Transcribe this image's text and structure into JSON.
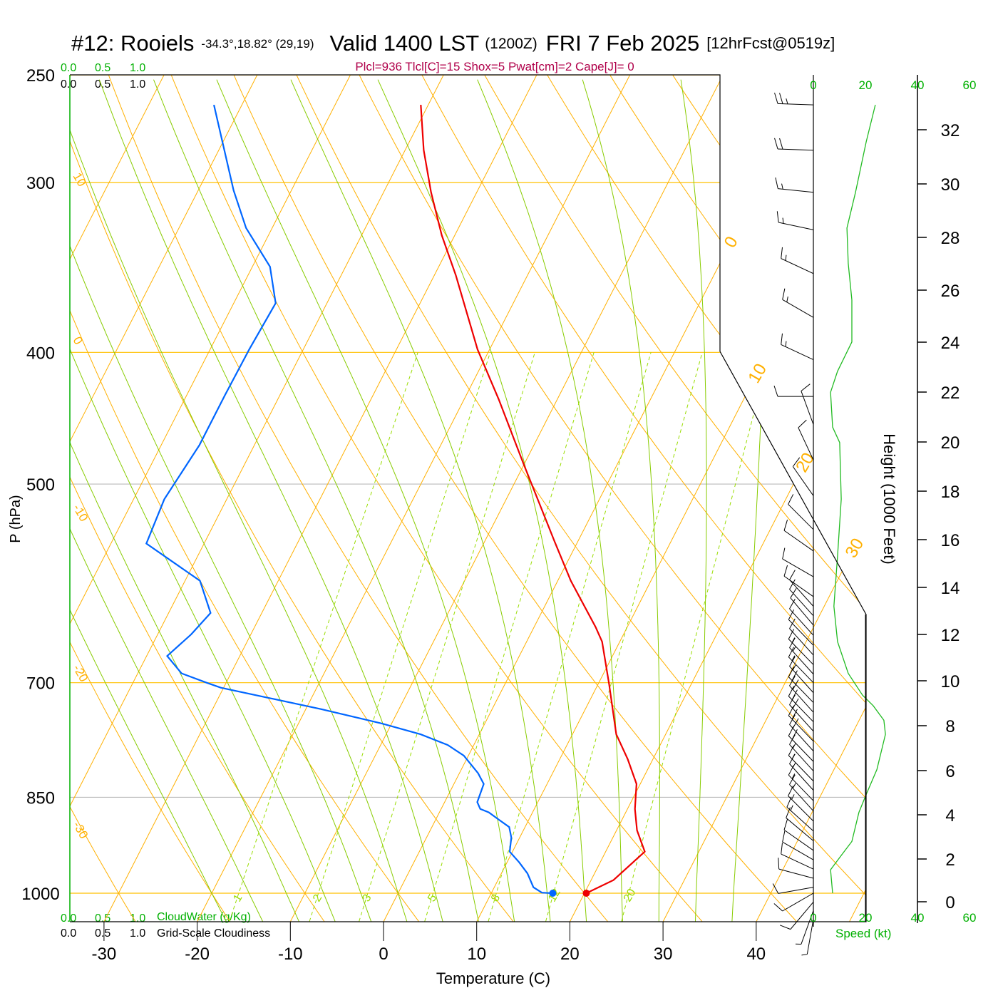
{
  "title": {
    "station": "#12: Rooiels",
    "coords": "-34.3°,18.82° (29,19)",
    "valid": "Valid 1400 LST",
    "zulu": "(1200Z)",
    "date": "FRI 7 Feb 2025",
    "forecast": "[12hrFcst@0519z]"
  },
  "parcel_info": "Plcl=936 Tlcl[C]=15 Shox=5 Pwat[cm]=2 Cape[J]= 0",
  "colors": {
    "temperature": "#ee0000",
    "dewpoint": "#0066ff",
    "isotherm": "#ffb000",
    "moist_adiabat": "#88cc00",
    "mixing_ratio": "#99dd00",
    "green_text": "#00b000",
    "parcel_text": "#b0004a"
  },
  "cloud_scale": {
    "ticks": [
      "0.0",
      "0.5",
      "1.0"
    ],
    "cloudwater_label": "CloudWater (g/Kg)",
    "cloudiness_label": "Grid-Scale Cloudiness"
  },
  "chart_data": {
    "type": "line",
    "subtype": "skew-T log-p",
    "xlabel": "Temperature (C)",
    "ylabel": "P (hPa)",
    "y2label": "Height (1000 Feet)",
    "speed_label": "Speed (kt)",
    "x_ticks": [
      -30,
      -20,
      -10,
      0,
      10,
      20,
      30,
      40
    ],
    "x_tick_labels": [
      "-30",
      "-20",
      "-10",
      "0",
      "10",
      "20",
      "30",
      "40"
    ],
    "y_ticks": [
      250,
      300,
      400,
      500,
      700,
      850,
      1000
    ],
    "y_tick_labels": [
      "250",
      "300",
      "400",
      "500",
      "700",
      "850",
      "1000"
    ],
    "ylim": [
      1049,
      250
    ],
    "height_ticks": [
      "0",
      "2",
      "4",
      "6",
      "8",
      "10",
      "12",
      "14",
      "16",
      "18",
      "20",
      "22",
      "24",
      "26",
      "28",
      "30",
      "32"
    ],
    "speed_ticks": [
      "0",
      "20",
      "40",
      "60"
    ],
    "speed_range": [
      0,
      60
    ],
    "isotherm_labels": [
      "0",
      "10",
      "20",
      "30"
    ],
    "dry_adiabat_labels": [
      "10",
      "0",
      "-10",
      "-20",
      "-30"
    ],
    "mixing_ratio_labels": [
      "1",
      "2",
      "3",
      "5",
      "8",
      "12",
      "20"
    ],
    "series": [
      {
        "name": "Temperature",
        "pressure": [
          1000,
          978,
          932,
          899,
          867,
          831,
          797,
          764,
          702,
          653,
          637,
          589,
          551,
          483,
          433,
          398,
          351,
          328,
          305,
          284,
          263
        ],
        "values": [
          20.2,
          22.4,
          24.2,
          22.2,
          20.8,
          19.6,
          17.3,
          14.7,
          11.2,
          8.1,
          6.6,
          1.4,
          -2.5,
          -10.1,
          -16.3,
          -21.3,
          -27.7,
          -31.4,
          -34.9,
          -38.0,
          -40.8
        ]
      },
      {
        "name": "Dewpoint",
        "pressure": [
          1000,
          999,
          990,
          967,
          949,
          932,
          910,
          894,
          883,
          872,
          867,
          857,
          831,
          816,
          792,
          778,
          764,
          750,
          732,
          719,
          706,
          700,
          689,
          669,
          645,
          622,
          589,
          553,
          513,
          468,
          430,
          398,
          368,
          346,
          324,
          304,
          263
        ],
        "values": [
          16.6,
          15.4,
          14.2,
          12.8,
          11.3,
          9.7,
          9.1,
          8.3,
          6.8,
          5.3,
          4.2,
          3.5,
          3.2,
          2.0,
          -0.5,
          -2.8,
          -6.3,
          -11.1,
          -18.4,
          -24.3,
          -30.3,
          -32.1,
          -35.3,
          -37.8,
          -36.4,
          -35.5,
          -38.4,
          -46.2,
          -46.7,
          -45.9,
          -45.9,
          -45.8,
          -45.5,
          -48.1,
          -52.8,
          -56.2,
          -63.0
        ]
      },
      {
        "name": "Wind Speed (kt)",
        "pressure": [
          1000,
          961,
          938,
          916,
          872,
          846,
          811,
          764,
          746,
          728,
          715,
          689,
          653,
          615,
          565,
          513,
          466,
          454,
          428,
          413,
          393,
          366,
          344,
          324,
          305,
          280,
          263
        ],
        "values": [
          7.4,
          6.6,
          10.7,
          14.8,
          17.5,
          20.3,
          24.4,
          27.7,
          27.1,
          23.0,
          18.9,
          13.4,
          9.3,
          7.9,
          9.3,
          10.7,
          10.1,
          7.4,
          6.6,
          9.3,
          14.8,
          14.8,
          13.4,
          12.9,
          16.2,
          20.3,
          23.8
        ]
      }
    ],
    "wind_barbs": [
      [
        263,
        272,
        25
      ],
      [
        284,
        272,
        20
      ],
      [
        305,
        276,
        15
      ],
      [
        325,
        282,
        15
      ],
      [
        350,
        295,
        15
      ],
      [
        377,
        300,
        15
      ],
      [
        405,
        295,
        15
      ],
      [
        431,
        270,
        10
      ],
      [
        452,
        340,
        10
      ],
      [
        480,
        335,
        10
      ],
      [
        510,
        325,
        10
      ],
      [
        540,
        315,
        10
      ],
      [
        560,
        305,
        10
      ],
      [
        585,
        300,
        10
      ],
      [
        605,
        305,
        10
      ],
      [
        615,
        318,
        10
      ],
      [
        625,
        318,
        10
      ],
      [
        635,
        320,
        10
      ],
      [
        646,
        318,
        10
      ],
      [
        657,
        316,
        10
      ],
      [
        668,
        318,
        10
      ],
      [
        679,
        316,
        15
      ],
      [
        690,
        318,
        15
      ],
      [
        700,
        316,
        15
      ],
      [
        712,
        318,
        15
      ],
      [
        724,
        316,
        20
      ],
      [
        736,
        318,
        20
      ],
      [
        748,
        316,
        20
      ],
      [
        760,
        318,
        20
      ],
      [
        773,
        316,
        20
      ],
      [
        786,
        318,
        20
      ],
      [
        800,
        316,
        20
      ],
      [
        813,
        318,
        15
      ],
      [
        827,
        316,
        15
      ],
      [
        840,
        318,
        15
      ],
      [
        855,
        316,
        15
      ],
      [
        870,
        318,
        15
      ],
      [
        885,
        315,
        15
      ],
      [
        900,
        312,
        15
      ],
      [
        915,
        310,
        10
      ],
      [
        930,
        305,
        10
      ],
      [
        945,
        300,
        10
      ],
      [
        960,
        295,
        10
      ],
      [
        975,
        285,
        10
      ],
      [
        990,
        260,
        10
      ],
      [
        1000,
        240,
        10
      ],
      [
        1015,
        220,
        10
      ],
      [
        1030,
        200,
        5
      ],
      [
        1045,
        190,
        5
      ]
    ]
  }
}
